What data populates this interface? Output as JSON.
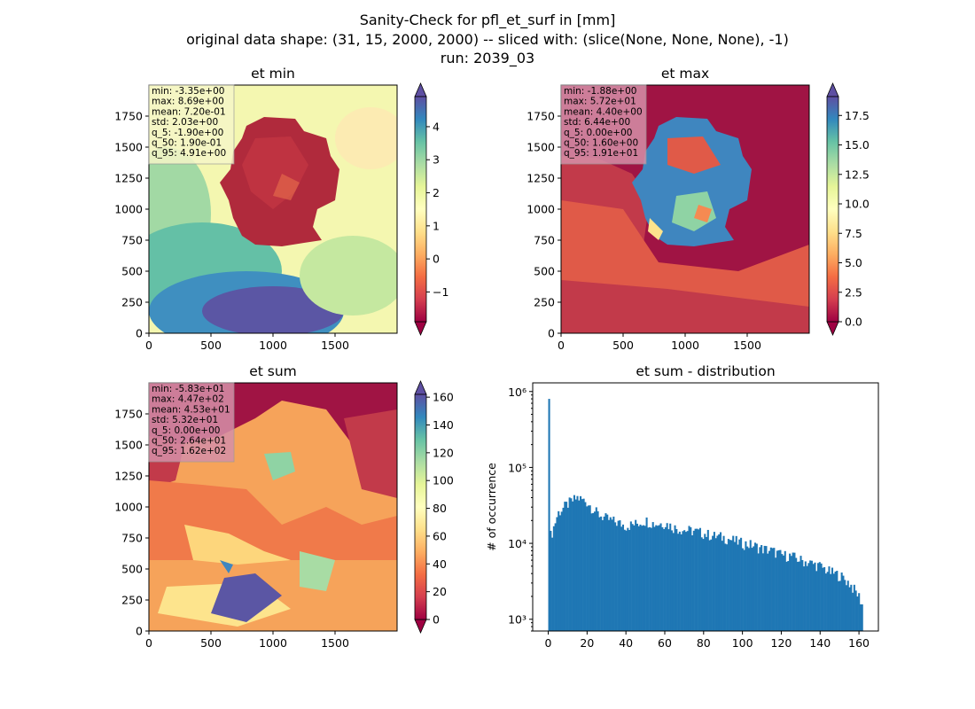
{
  "figure": {
    "title_line1": "Sanity-Check for pfl_et_surf in [mm]",
    "title_line2": "original data shape: (31, 15, 2000, 2000) -- sliced with: (slice(None, None, None), -1)",
    "title_line3": "run: 2039_03"
  },
  "chart_data": [
    {
      "type": "heatmap",
      "title": "et min",
      "colormap": "Spectral",
      "xlim": [
        0,
        2000
      ],
      "ylim": [
        0,
        2000
      ],
      "xticks": [
        0,
        500,
        1000,
        1500
      ],
      "yticks": [
        0,
        250,
        500,
        750,
        1000,
        1250,
        1500,
        1750
      ],
      "colorbar": {
        "min": -1.9,
        "max": 4.91,
        "ticks": [
          -1,
          0,
          1,
          2,
          3,
          4
        ],
        "extend": "both"
      },
      "stats": [
        "min: -3.35e+00",
        "max: 8.69e+00",
        "mean: 7.20e-01",
        "std: 2.03e+00",
        "q_5: -1.90e+00",
        "q_50: 1.90e-01",
        "q_95: 4.91e+00"
      ],
      "stats_box_color": "#f6f6c8"
    },
    {
      "type": "heatmap",
      "title": "et max",
      "colormap": "Spectral",
      "xlim": [
        0,
        2000
      ],
      "ylim": [
        0,
        2000
      ],
      "xticks": [
        0,
        500,
        1000,
        1500
      ],
      "yticks": [
        0,
        250,
        500,
        750,
        1000,
        1250,
        1500,
        1750
      ],
      "colorbar": {
        "min": 0,
        "max": 19.1,
        "ticks": [
          0.0,
          2.5,
          5.0,
          7.5,
          10.0,
          12.5,
          15.0,
          17.5
        ],
        "extend": "both"
      },
      "stats": [
        "min: -1.88e+00",
        "max: 5.72e+01",
        "mean: 4.40e+00",
        "std: 6.44e+00",
        "q_5: 0.00e+00",
        "q_50: 1.60e+00",
        "q_95: 1.91e+01"
      ],
      "stats_box_color": "#d690a8"
    },
    {
      "type": "heatmap",
      "title": "et sum",
      "colormap": "Spectral",
      "xlim": [
        0,
        2000
      ],
      "ylim": [
        0,
        2000
      ],
      "xticks": [
        0,
        500,
        1000,
        1500
      ],
      "yticks": [
        0,
        250,
        500,
        750,
        1000,
        1250,
        1500,
        1750
      ],
      "colorbar": {
        "min": 0,
        "max": 162,
        "ticks": [
          0,
          20,
          40,
          60,
          80,
          100,
          120,
          140,
          160
        ],
        "extend": "both"
      },
      "stats": [
        "min: -5.83e+01",
        "max: 4.47e+02",
        "mean: 4.53e+01",
        "std: 5.32e+01",
        "q_5: 0.00e+00",
        "q_50: 2.64e+01",
        "q_95: 1.62e+02"
      ],
      "stats_box_color": "#d690a8"
    },
    {
      "type": "bar",
      "title": "et sum - distribution",
      "ylabel": "# of occurrence",
      "yscale": "log",
      "xlim": [
        -8,
        170
      ],
      "ylim": [
        700,
        1300000
      ],
      "xticks": [
        0,
        20,
        40,
        60,
        80,
        100,
        120,
        140,
        160
      ],
      "yticks": [
        1000,
        10000,
        100000,
        1000000
      ],
      "ytick_labels": [
        "10³",
        "10⁴",
        "10⁵",
        "10⁶"
      ],
      "bar_color": "#1f77b4",
      "bins": {
        "start": 0,
        "end": 162,
        "count": 200
      },
      "spike": {
        "x": 0,
        "count": 800000
      },
      "profile": [
        [
          0,
          11000
        ],
        [
          2,
          14000
        ],
        [
          5,
          25000
        ],
        [
          10,
          33000
        ],
        [
          15,
          40000
        ],
        [
          20,
          35000
        ],
        [
          25,
          25000
        ],
        [
          30,
          21000
        ],
        [
          35,
          19000
        ],
        [
          40,
          17000
        ],
        [
          45,
          18000
        ],
        [
          50,
          20000
        ],
        [
          55,
          18000
        ],
        [
          60,
          18500
        ],
        [
          65,
          16000
        ],
        [
          70,
          15000
        ],
        [
          75,
          14500
        ],
        [
          80,
          13500
        ],
        [
          85,
          12500
        ],
        [
          90,
          12000
        ],
        [
          95,
          11000
        ],
        [
          100,
          10000
        ],
        [
          105,
          9500
        ],
        [
          110,
          8500
        ],
        [
          115,
          8000
        ],
        [
          120,
          7000
        ],
        [
          125,
          6800
        ],
        [
          130,
          6000
        ],
        [
          135,
          5500
        ],
        [
          140,
          5000
        ],
        [
          145,
          4200
        ],
        [
          150,
          3800
        ],
        [
          155,
          3000
        ],
        [
          160,
          2000
        ],
        [
          162,
          1500
        ]
      ]
    }
  ]
}
